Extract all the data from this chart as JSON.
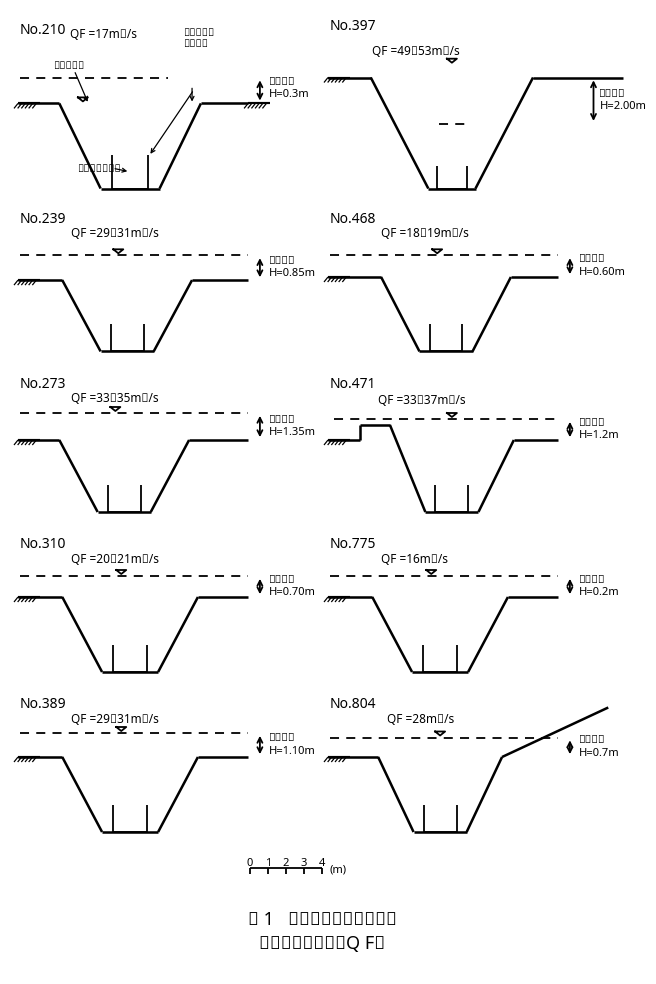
{
  "title1": "図 1   洪水流流下痕跡および",
  "title2": "推定洪水流下量（Q F）",
  "panels": [
    {
      "label": "No.210",
      "qf": "QF =17m³/s",
      "h": "溢水水深\nH=0.3m",
      "col": 0,
      "row": 0,
      "style": "flume"
    },
    {
      "label": "No.397",
      "qf": "QF =49～53m³/s",
      "h": "溢水水深\nH=2.00m",
      "col": 1,
      "row": 0,
      "style": "wide"
    },
    {
      "label": "No.239",
      "qf": "QF =29～31m³/s",
      "h": "溢水水深\nH=0.85m",
      "col": 0,
      "row": 1,
      "style": "std"
    },
    {
      "label": "No.468",
      "qf": "QF =18～19m³/s",
      "h": "溢水水深\nH=0.60m",
      "col": 1,
      "row": 1,
      "style": "std"
    },
    {
      "label": "No.273",
      "qf": "QF =33～35m³/s",
      "h": "溢水水深\nH=1.35m",
      "col": 0,
      "row": 2,
      "style": "std"
    },
    {
      "label": "No.471",
      "qf": "QF =33～37m³/s",
      "h": "溢水水深\nH=1.2m",
      "col": 1,
      "row": 2,
      "style": "raised"
    },
    {
      "label": "No.310",
      "qf": "QF =20～21m³/s",
      "h": "溢水水深\nH=0.70m",
      "col": 0,
      "row": 3,
      "style": "std"
    },
    {
      "label": "No.775",
      "qf": "QF =16m³/s",
      "h": "溢水水深\nH=0.2m",
      "col": 1,
      "row": 3,
      "style": "std"
    },
    {
      "label": "No.389",
      "qf": "QF =29～31m³/s",
      "h": "溢水水深\nH=1.10m",
      "col": 0,
      "row": 4,
      "style": "std"
    },
    {
      "label": "No.804",
      "qf": "QF =28m³/s",
      "h": "溢水水深\nH=0.7m",
      "col": 1,
      "row": 4,
      "style": "slant"
    }
  ],
  "bg": "#ffffff",
  "lc": "#000000"
}
